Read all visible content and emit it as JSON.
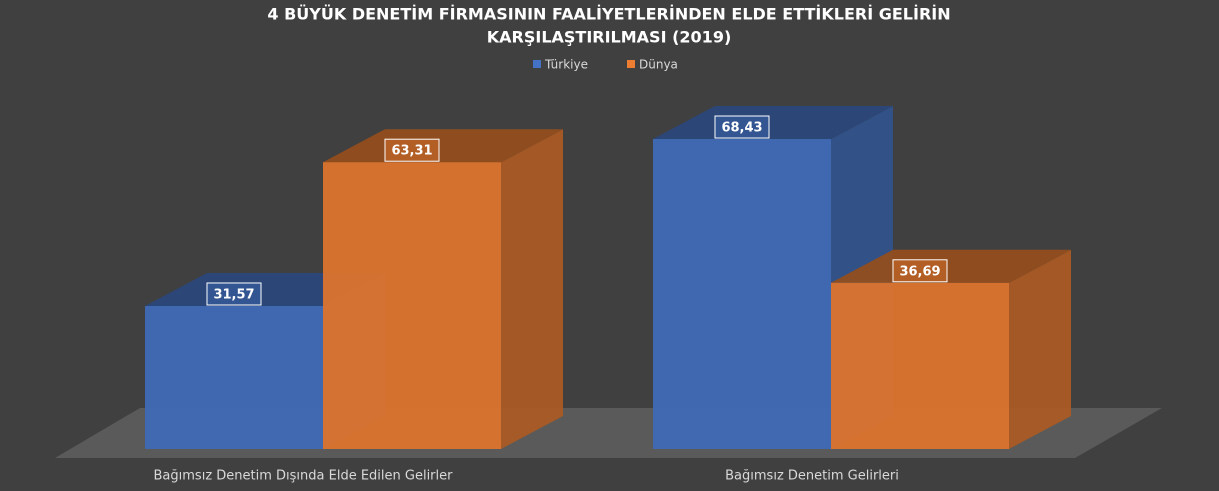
{
  "chart_data": {
    "type": "bar3d",
    "title": [
      "4 BÜYÜK DENETİM FİRMASININ FAALİYETLERİNDEN ELDE ETTİKLERİ GELİRİN",
      "KARŞILAŞTIRILMASI (2019)"
    ],
    "categories": [
      "Bağımsız Denetim Dışında Elde Edilen Gelirler",
      "Bağımsız Denetim Gelirleri"
    ],
    "series": [
      {
        "name": "Türkiye",
        "color": "#4472c4",
        "values": [
          31.57,
          68.43
        ],
        "value_labels": [
          "31,57",
          "68,43"
        ]
      },
      {
        "name": "Dünya",
        "color": "#ed7d31",
        "values": [
          63.31,
          36.69
        ],
        "value_labels": [
          "63,31",
          "36,69"
        ]
      }
    ]
  }
}
